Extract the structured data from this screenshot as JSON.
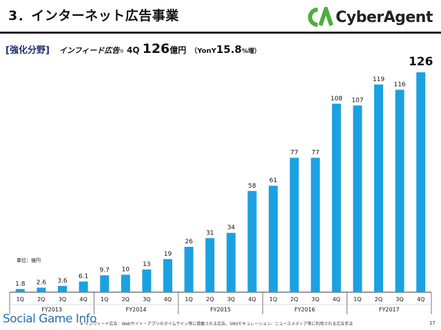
{
  "header": {
    "title": "3．インターネット広告事業",
    "logo_text": "CyberAgent"
  },
  "subhead": {
    "tag": "[強化分野]",
    "label": "インフィード広告",
    "note_mark": "※",
    "quarter": "4Q",
    "value": "126",
    "unit": "億円",
    "yoy_prefix": "（YonY",
    "yoy_value": "15.8",
    "yoy_suffix": "%増）"
  },
  "unit_note": "単位：億円",
  "chart_data": {
    "type": "bar",
    "categories": [
      "1Q",
      "2Q",
      "3Q",
      "4Q",
      "1Q",
      "2Q",
      "3Q",
      "4Q",
      "1Q",
      "2Q",
      "3Q",
      "4Q",
      "1Q",
      "2Q",
      "3Q",
      "4Q",
      "1Q",
      "2Q",
      "3Q",
      "4Q"
    ],
    "groups": [
      "FY2013",
      "FY2014",
      "FY2015",
      "FY2016",
      "FY2017"
    ],
    "values": [
      1.8,
      2.6,
      3.6,
      6.1,
      9.7,
      10,
      13,
      19,
      26,
      31,
      34,
      58,
      61,
      77,
      77,
      108,
      107,
      119,
      116,
      126
    ],
    "value_labels": [
      "1.8",
      "2.6",
      "3.6",
      "6.1",
      "9.7",
      "10",
      "13",
      "19",
      "26",
      "31",
      "34",
      "58",
      "61",
      "77",
      "77",
      "108",
      "107",
      "119",
      "116",
      "126"
    ],
    "ylim": [
      0,
      130
    ],
    "bar_color": "#1ba1e2",
    "highlight_last": true
  },
  "footer": {
    "brand": "Social Game Info",
    "note": "※ インフィード広告：Webサイト・アプリのタイムライン等に掲載される広告。SNSやキュレーション、ニュースメディア等に利用される広告手法",
    "page": "17"
  }
}
